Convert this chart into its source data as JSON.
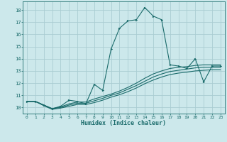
{
  "title": "",
  "xlabel": "Humidex (Indice chaleur)",
  "ylabel": "",
  "background_color": "#cce8eb",
  "line_color": "#1a6b6b",
  "grid_color": "#aacdd2",
  "xlim": [
    -0.5,
    23.5
  ],
  "ylim": [
    9.5,
    18.7
  ],
  "xticks": [
    0,
    1,
    2,
    3,
    4,
    5,
    6,
    7,
    8,
    9,
    10,
    11,
    12,
    13,
    14,
    15,
    16,
    17,
    18,
    19,
    20,
    21,
    22,
    23
  ],
  "yticks": [
    10,
    11,
    12,
    13,
    14,
    15,
    16,
    17,
    18
  ],
  "series_main": [
    10.5,
    10.5,
    10.2,
    9.9,
    10.1,
    10.6,
    10.5,
    10.3,
    11.9,
    11.4,
    14.8,
    16.5,
    17.1,
    17.2,
    18.2,
    17.5,
    17.2,
    13.5,
    13.4,
    13.2,
    14.0,
    12.1,
    13.4,
    13.4
  ],
  "series_smooth": [
    [
      10.5,
      10.5,
      10.2,
      9.9,
      10.05,
      10.3,
      10.45,
      10.45,
      10.7,
      10.9,
      11.1,
      11.35,
      11.65,
      12.0,
      12.4,
      12.75,
      13.0,
      13.2,
      13.3,
      13.35,
      13.45,
      13.5,
      13.5,
      13.5
    ],
    [
      10.5,
      10.5,
      10.2,
      9.9,
      10.0,
      10.2,
      10.35,
      10.35,
      10.55,
      10.75,
      11.0,
      11.2,
      11.5,
      11.8,
      12.15,
      12.5,
      12.75,
      12.95,
      13.05,
      13.15,
      13.25,
      13.3,
      13.3,
      13.3
    ],
    [
      10.5,
      10.5,
      10.15,
      9.85,
      9.95,
      10.1,
      10.25,
      10.25,
      10.4,
      10.6,
      10.85,
      11.05,
      11.3,
      11.6,
      11.95,
      12.25,
      12.5,
      12.7,
      12.82,
      12.9,
      13.0,
      13.05,
      13.1,
      13.1
    ]
  ]
}
